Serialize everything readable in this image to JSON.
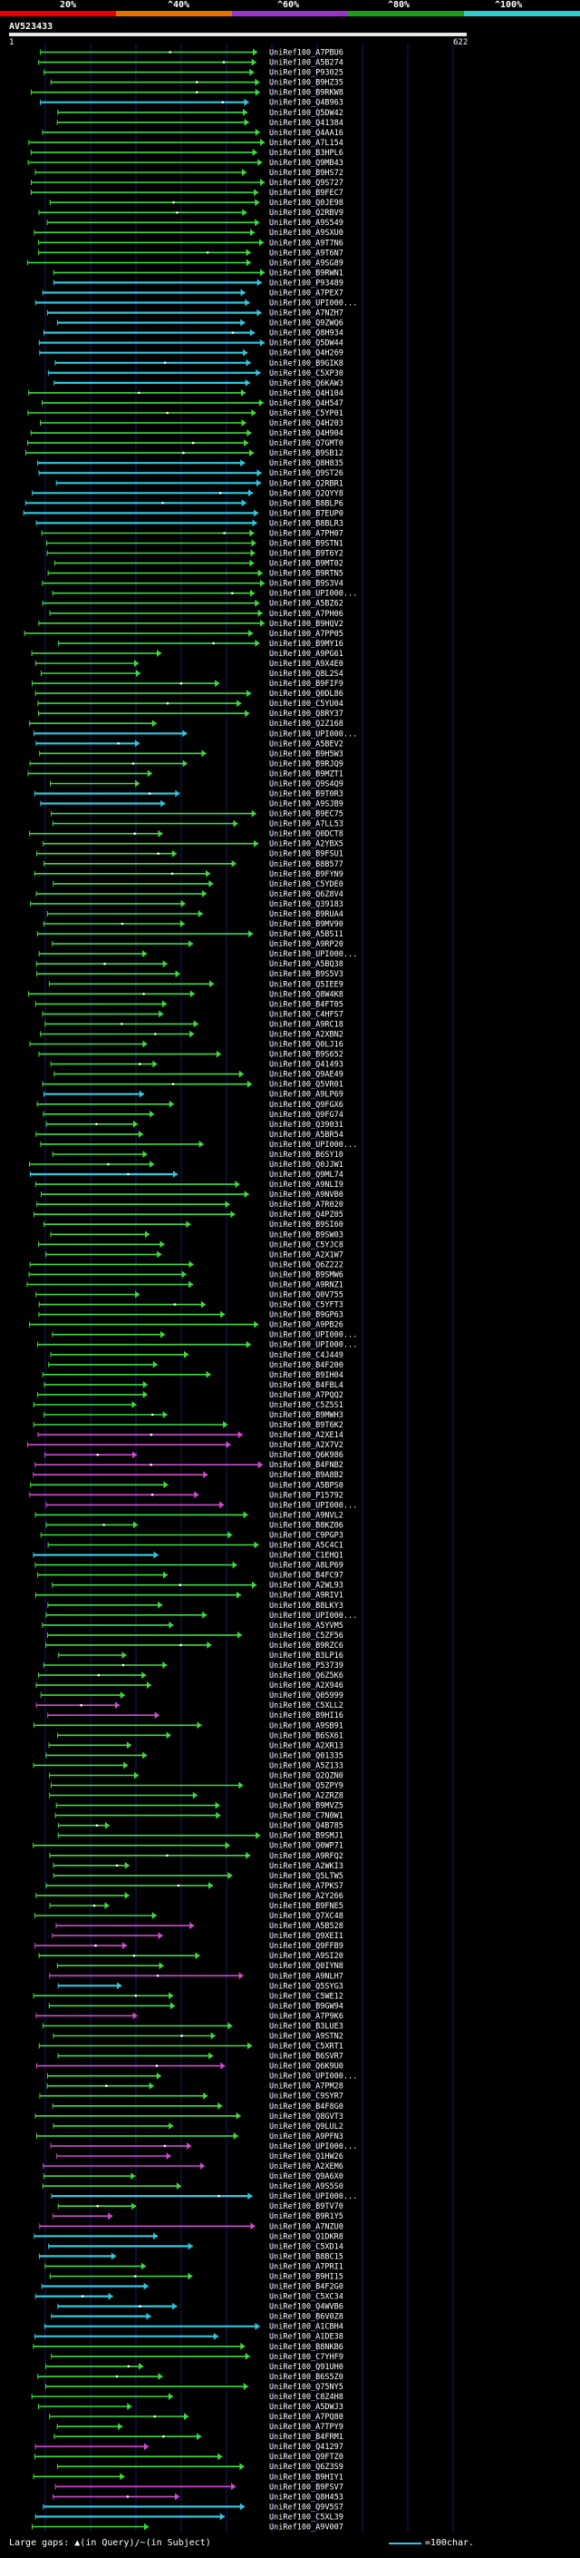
{
  "legend": {
    "labels": [
      "20%",
      "^40%",
      "^60%",
      "^80%",
      "^100%"
    ],
    "colors": [
      "#e60000",
      "#e67300",
      "#9933cc",
      "#1a9e1a",
      "#33cccc"
    ]
  },
  "query": {
    "title": "AV523433",
    "start": "1",
    "end": "622"
  },
  "colors": {
    "green": "#3ddc3d",
    "magenta": "#d14ad1",
    "cyan": "#2fc7dd",
    "grid": "#1a1a66"
  },
  "footer": {
    "large_gaps_label": "Large gaps:",
    "query_gap_label": "(in Query)",
    "subject_gap_label": "(in Subject)",
    "scale_label": "=100char."
  },
  "hits": [
    {
      "label": "UniRef100_A7PBU6",
      "c": "g"
    },
    {
      "label": "UniRef100_A5B274",
      "c": "g"
    },
    {
      "label": "UniRef100_P93025",
      "c": "g"
    },
    {
      "label": "UniRef100_B9HZ35",
      "c": "g"
    },
    {
      "label": "UniRef100_B9RKW8",
      "c": "g"
    },
    {
      "label": "UniRef100_Q4B963",
      "c": "c"
    },
    {
      "label": "UniRef100_Q5DW42",
      "c": "g"
    },
    {
      "label": "UniRef100_Q41384",
      "c": "g"
    },
    {
      "label": "UniRef100_Q4AA16",
      "c": "g"
    },
    {
      "label": "UniRef100_A7L154",
      "c": "g"
    },
    {
      "label": "UniRef100_B3HPL6",
      "c": "g"
    },
    {
      "label": "UniRef100_Q9MB43",
      "c": "g"
    },
    {
      "label": "UniRef100_B9HS72",
      "c": "g"
    },
    {
      "label": "UniRef100_Q9S727",
      "c": "g"
    },
    {
      "label": "UniRef100_B9FEC7",
      "c": "g"
    },
    {
      "label": "UniRef100_Q0JE98",
      "c": "g"
    },
    {
      "label": "UniRef100_Q2RBV9",
      "c": "g"
    },
    {
      "label": "UniRef100_A9S549",
      "c": "g"
    },
    {
      "label": "UniRef100_A9SXU0",
      "c": "g"
    },
    {
      "label": "UniRef100_A9T7N6",
      "c": "g"
    },
    {
      "label": "UniRef100_A9T6N7",
      "c": "g"
    },
    {
      "label": "UniRef100_A9SG89",
      "c": "g"
    },
    {
      "label": "UniRef100_B9RWN1",
      "c": "g"
    },
    {
      "label": "UniRef100_P93489",
      "c": "c"
    },
    {
      "label": "UniRef100_A7PEX7",
      "c": "c"
    },
    {
      "label": "UniRef100_UPI000...",
      "c": "c"
    },
    {
      "label": "UniRef100_A7NZH7",
      "c": "c"
    },
    {
      "label": "UniRef100_Q9ZWQ6",
      "c": "c"
    },
    {
      "label": "UniRef100_Q8H934",
      "c": "c"
    },
    {
      "label": "UniRef100_Q5DW44",
      "c": "c"
    },
    {
      "label": "UniRef100_Q4H269",
      "c": "c"
    },
    {
      "label": "UniRef100_B9GIK8",
      "c": "c"
    },
    {
      "label": "UniRef100_C5XP30",
      "c": "c"
    },
    {
      "label": "UniRef100_Q6KAW3",
      "c": "c"
    },
    {
      "label": "UniRef100_Q4H104",
      "c": "g"
    },
    {
      "label": "UniRef100_Q4H547",
      "c": "g"
    },
    {
      "label": "UniRef100_C5YP01",
      "c": "g"
    },
    {
      "label": "UniRef100_Q4H203",
      "c": "g"
    },
    {
      "label": "UniRef100_Q4H904",
      "c": "g"
    },
    {
      "label": "UniRef100_Q7GMT0",
      "c": "g"
    },
    {
      "label": "UniRef100_B9SB12",
      "c": "g"
    },
    {
      "label": "UniRef100_Q8H835",
      "c": "c"
    },
    {
      "label": "UniRef100_Q9ST26",
      "c": "c"
    },
    {
      "label": "UniRef100_Q2RBR1",
      "c": "c"
    },
    {
      "label": "UniRef100_Q2QYY8",
      "c": "c"
    },
    {
      "label": "UniRef100_B8BLP6",
      "c": "c"
    },
    {
      "label": "UniRef100_B7EUP0",
      "c": "c"
    },
    {
      "label": "UniRef100_B8BLR3",
      "c": "c"
    },
    {
      "label": "UniRef100_A7PH07",
      "c": "g"
    },
    {
      "label": "UniRef100_B9STN1",
      "c": "g"
    },
    {
      "label": "UniRef100_B9T6Y2",
      "c": "g"
    },
    {
      "label": "UniRef100_B9MT02",
      "c": "g"
    },
    {
      "label": "UniRef100_B9RTN5",
      "c": "g"
    },
    {
      "label": "UniRef100_B9S3V4",
      "c": "g"
    },
    {
      "label": "UniRef100_UPI000...",
      "c": "g"
    },
    {
      "label": "UniRef100_A5BZ62",
      "c": "g"
    },
    {
      "label": "UniRef100_A7PH06",
      "c": "g"
    },
    {
      "label": "UniRef100_B9HQV2",
      "c": "g"
    },
    {
      "label": "UniRef100_A7PP05",
      "c": "g"
    },
    {
      "label": "UniRef100_B9MY16",
      "c": "g"
    },
    {
      "label": "UniRef100_A9PG61",
      "c": "g"
    },
    {
      "label": "UniRef100_A9X4E0",
      "c": "g"
    },
    {
      "label": "UniRef100_Q8L2S4",
      "c": "g"
    },
    {
      "label": "UniRef100_B9FIF9",
      "c": "g"
    },
    {
      "label": "UniRef100_Q0DL86",
      "c": "g"
    },
    {
      "label": "UniRef100_C5YU04",
      "c": "g"
    },
    {
      "label": "UniRef100_Q8RY37",
      "c": "g"
    },
    {
      "label": "UniRef100_Q2Z168",
      "c": "g"
    },
    {
      "label": "UniRef100_UPI000...",
      "c": "c"
    },
    {
      "label": "UniRef100_A5BEV2",
      "c": "c"
    },
    {
      "label": "UniRef100_B9H5W3",
      "c": "g"
    },
    {
      "label": "UniRef100_B9RJQ9",
      "c": "g"
    },
    {
      "label": "UniRef100_B9MZT1",
      "c": "g"
    },
    {
      "label": "UniRef100_Q9S4Q9",
      "c": "g"
    },
    {
      "label": "UniRef100_B9T0R3",
      "c": "c"
    },
    {
      "label": "UniRef100_A9SJB9",
      "c": "c"
    },
    {
      "label": "UniRef100_B9EC75",
      "c": "g"
    },
    {
      "label": "UniRef100_A7LL53",
      "c": "g"
    },
    {
      "label": "UniRef100_Q0DCT8",
      "c": "g"
    },
    {
      "label": "UniRef100_A2YBX5",
      "c": "g"
    },
    {
      "label": "UniRef100_B9FSU1",
      "c": "g"
    },
    {
      "label": "UniRef100_B8B577",
      "c": "g"
    },
    {
      "label": "UniRef100_B9FYN9",
      "c": "g"
    },
    {
      "label": "UniRef100_C5YDE0",
      "c": "g"
    },
    {
      "label": "UniRef100_Q6Z8V4",
      "c": "g"
    },
    {
      "label": "UniRef100_Q39183",
      "c": "g"
    },
    {
      "label": "UniRef100_B9RUA4",
      "c": "g"
    },
    {
      "label": "UniRef100_B9MV90",
      "c": "g"
    },
    {
      "label": "UniRef100_A5BS11",
      "c": "g"
    },
    {
      "label": "UniRef100_A9RP20",
      "c": "g"
    },
    {
      "label": "UniRef100_UPI000...",
      "c": "g"
    },
    {
      "label": "UniRef100_A5BQ38",
      "c": "g"
    },
    {
      "label": "UniRef100_B9S5V3",
      "c": "g"
    },
    {
      "label": "UniRef100_Q5IEE9",
      "c": "g"
    },
    {
      "label": "UniRef100_Q8W4K8",
      "c": "g"
    },
    {
      "label": "UniRef100_B4FT05",
      "c": "g"
    },
    {
      "label": "UniRef100_C4HFS7",
      "c": "g"
    },
    {
      "label": "UniRef100_A9RC18",
      "c": "g"
    },
    {
      "label": "UniRef100_A2XBN2",
      "c": "g"
    },
    {
      "label": "UniRef100_Q0LJ16",
      "c": "g"
    },
    {
      "label": "UniRef100_B9S652",
      "c": "g"
    },
    {
      "label": "UniRef100_Q41493",
      "c": "g"
    },
    {
      "label": "UniRef100_Q9AE49",
      "c": "g"
    },
    {
      "label": "UniRef100_Q5VR01",
      "c": "g"
    },
    {
      "label": "UniRef100_A9LP69",
      "c": "c"
    },
    {
      "label": "UniRef100_Q9FGX6",
      "c": "g"
    },
    {
      "label": "UniRef100_Q9FG74",
      "c": "g"
    },
    {
      "label": "UniRef100_Q39031",
      "c": "g"
    },
    {
      "label": "UniRef100_A5BR54",
      "c": "g"
    },
    {
      "label": "UniRef100_UPI000...",
      "c": "g"
    },
    {
      "label": "UniRef100_B6SY10",
      "c": "g"
    },
    {
      "label": "UniRef100_Q0JJW1",
      "c": "g"
    },
    {
      "label": "UniRef100_Q9ML74",
      "c": "c"
    },
    {
      "label": "UniRef100_A9NLI9",
      "c": "g"
    },
    {
      "label": "UniRef100_A9NVB0",
      "c": "g"
    },
    {
      "label": "UniRef100_A7R020",
      "c": "g"
    },
    {
      "label": "UniRef100_Q4PZ05",
      "c": "g"
    },
    {
      "label": "UniRef100_B9SI60",
      "c": "g"
    },
    {
      "label": "UniRef100_B9SW03",
      "c": "g"
    },
    {
      "label": "UniRef100_C5YJC8",
      "c": "g"
    },
    {
      "label": "UniRef100_A2X1W7",
      "c": "g"
    },
    {
      "label": "UniRef100_Q6Z222",
      "c": "g"
    },
    {
      "label": "UniRef100_B9SMW6",
      "c": "g"
    },
    {
      "label": "UniRef100_A9RNZ1",
      "c": "g"
    },
    {
      "label": "UniRef100_Q0V755",
      "c": "g"
    },
    {
      "label": "UniRef100_C5YFT3",
      "c": "g"
    },
    {
      "label": "UniRef100_B9GP63",
      "c": "g"
    },
    {
      "label": "UniRef100_A9PB26",
      "c": "g"
    },
    {
      "label": "UniRef100_UPI000...",
      "c": "g"
    },
    {
      "label": "UniRef100_UPI000...",
      "c": "g"
    },
    {
      "label": "UniRef100_C4J449",
      "c": "g"
    },
    {
      "label": "UniRef100_B4F200",
      "c": "g"
    },
    {
      "label": "UniRef100_B9IH04",
      "c": "g"
    },
    {
      "label": "UniRef100_B4FBL4",
      "c": "g"
    },
    {
      "label": "UniRef100_A7PQQ2",
      "c": "g"
    },
    {
      "label": "UniRef100_C5Z5S1",
      "c": "g"
    },
    {
      "label": "UniRef100_B9MWH3",
      "c": "g"
    },
    {
      "label": "UniRef100_B9T6K2",
      "c": "g"
    },
    {
      "label": "UniRef100_A2XE14",
      "c": "m"
    },
    {
      "label": "UniRef100_A2X7V2",
      "c": "m"
    },
    {
      "label": "UniRef100_Q6K986",
      "c": "m"
    },
    {
      "label": "UniRef100_B4FNB2",
      "c": "m"
    },
    {
      "label": "UniRef100_B9A8B2",
      "c": "m"
    },
    {
      "label": "UniRef100_A5BPS0",
      "c": "g"
    },
    {
      "label": "UniRef100_P15792",
      "c": "m"
    },
    {
      "label": "UniRef100_UPI000...",
      "c": "m"
    },
    {
      "label": "UniRef100_A9NVL2",
      "c": "g"
    },
    {
      "label": "UniRef100_B8KZ06",
      "c": "g"
    },
    {
      "label": "UniRef100_C9PGP3",
      "c": "g"
    },
    {
      "label": "UniRef100_A5C4C1",
      "c": "g"
    },
    {
      "label": "UniRef100_C1EHQ1",
      "c": "c"
    },
    {
      "label": "UniRef100_A8LP69",
      "c": "g"
    },
    {
      "label": "UniRef100_B4FC97",
      "c": "g"
    },
    {
      "label": "UniRef100_A2WL93",
      "c": "g"
    },
    {
      "label": "UniRef100_A9RIV1",
      "c": "g"
    },
    {
      "label": "UniRef100_B8LKY3",
      "c": "g"
    },
    {
      "label": "UniRef100_UPI000...",
      "c": "g"
    },
    {
      "label": "UniRef100_A5YVM5",
      "c": "g"
    },
    {
      "label": "UniRef100_C5ZF56",
      "c": "g"
    },
    {
      "label": "UniRef100_B9RZC6",
      "c": "g"
    },
    {
      "label": "UniRef100_B3LP16",
      "c": "g"
    },
    {
      "label": "UniRef100_P53739",
      "c": "g"
    },
    {
      "label": "UniRef100_Q6Z5K6",
      "c": "g"
    },
    {
      "label": "UniRef100_A2X946",
      "c": "g"
    },
    {
      "label": "UniRef100_Q05999",
      "c": "g"
    },
    {
      "label": "UniRef100_C5XLL2",
      "c": "m"
    },
    {
      "label": "UniRef100_B9HI16",
      "c": "m"
    },
    {
      "label": "UniRef100_A9SB91",
      "c": "g"
    },
    {
      "label": "UniRef100_B6SX61",
      "c": "g"
    },
    {
      "label": "UniRef100_A2XR13",
      "c": "g"
    },
    {
      "label": "UniRef100_Q01335",
      "c": "g"
    },
    {
      "label": "UniRef100_A5Z133",
      "c": "g"
    },
    {
      "label": "UniRef100_Q2QZN0",
      "c": "g"
    },
    {
      "label": "UniRef100_Q5ZPY9",
      "c": "g"
    },
    {
      "label": "UniRef100_A2ZRZ8",
      "c": "g"
    },
    {
      "label": "UniRef100_B9MVZ5",
      "c": "g"
    },
    {
      "label": "UniRef100_C7N0W1",
      "c": "g"
    },
    {
      "label": "UniRef100_Q4B785",
      "c": "g"
    },
    {
      "label": "UniRef100_B9SMJ1",
      "c": "g"
    },
    {
      "label": "UniRef100_Q0WP71",
      "c": "g"
    },
    {
      "label": "UniRef100_A9RFQ2",
      "c": "g"
    },
    {
      "label": "UniRef100_A2WKI3",
      "c": "g"
    },
    {
      "label": "UniRef100_Q5LTW5",
      "c": "g"
    },
    {
      "label": "UniRef100_A7PKS7",
      "c": "g"
    },
    {
      "label": "UniRef100_A2Y266",
      "c": "g"
    },
    {
      "label": "UniRef100_B9FNE5",
      "c": "g"
    },
    {
      "label": "UniRef100_Q7XC48",
      "c": "g"
    },
    {
      "label": "UniRef100_A5B528",
      "c": "m"
    },
    {
      "label": "UniRef100_Q9XEI1",
      "c": "m"
    },
    {
      "label": "UniRef100_Q9FFB9",
      "c": "m"
    },
    {
      "label": "UniRef100_A9SI20",
      "c": "g"
    },
    {
      "label": "UniRef100_Q0IYN8",
      "c": "g"
    },
    {
      "label": "UniRef100_A9NLH7",
      "c": "m"
    },
    {
      "label": "UniRef100_Q5SYG3",
      "c": "c"
    },
    {
      "label": "UniRef100_C5WE12",
      "c": "g"
    },
    {
      "label": "UniRef100_B9GW94",
      "c": "g"
    },
    {
      "label": "UniRef100_A7P9K6",
      "c": "m"
    },
    {
      "label": "UniRef100_B3LUE3",
      "c": "g"
    },
    {
      "label": "UniRef100_A9STN2",
      "c": "g"
    },
    {
      "label": "UniRef100_C5XRT1",
      "c": "g"
    },
    {
      "label": "UniRef100_B6SVR7",
      "c": "g"
    },
    {
      "label": "UniRef100_Q6K9U0",
      "c": "m"
    },
    {
      "label": "UniRef100_UPI000...",
      "c": "g"
    },
    {
      "label": "UniRef100_A7PM28",
      "c": "g"
    },
    {
      "label": "UniRef100_C9SYR7",
      "c": "g"
    },
    {
      "label": "UniRef100_B4F8G0",
      "c": "g"
    },
    {
      "label": "UniRef100_Q8GVT3",
      "c": "g"
    },
    {
      "label": "UniRef100_Q9LUL2",
      "c": "g"
    },
    {
      "label": "UniRef100_A9PFN3",
      "c": "g"
    },
    {
      "label": "UniRef100_UPI000...",
      "c": "m"
    },
    {
      "label": "UniRef100_Q1HW26",
      "c": "m"
    },
    {
      "label": "UniRef100_A2XEM6",
      "c": "m"
    },
    {
      "label": "UniRef100_Q9A6X0",
      "c": "g"
    },
    {
      "label": "UniRef100_A9S5S0",
      "c": "g"
    },
    {
      "label": "UniRef100_UPI000...",
      "c": "c"
    },
    {
      "label": "UniRef100_B9TV70",
      "c": "g"
    },
    {
      "label": "UniRef100_B9R1Y5",
      "c": "m"
    },
    {
      "label": "UniRef100_A7NZU0",
      "c": "m"
    },
    {
      "label": "UniRef100_Q1DKR8",
      "c": "c"
    },
    {
      "label": "UniRef100_C5XD14",
      "c": "c"
    },
    {
      "label": "UniRef100_B8BC15",
      "c": "c"
    },
    {
      "label": "UniRef100_A7PRI1",
      "c": "g"
    },
    {
      "label": "UniRef100_B9HI15",
      "c": "g"
    },
    {
      "label": "UniRef100_B4F2G0",
      "c": "c"
    },
    {
      "label": "UniRef100_C5XC34",
      "c": "c"
    },
    {
      "label": "UniRef100_Q4WVB6",
      "c": "c"
    },
    {
      "label": "UniRef100_B6V0Z8",
      "c": "c"
    },
    {
      "label": "UniRef100_A1CBH4",
      "c": "c"
    },
    {
      "label": "UniRef100_A1DE38",
      "c": "c"
    },
    {
      "label": "UniRef100_B8NKB6",
      "c": "g"
    },
    {
      "label": "UniRef100_C7YHF9",
      "c": "g"
    },
    {
      "label": "UniRef100_Q91UH0",
      "c": "g"
    },
    {
      "label": "UniRef100_B6S5Z0",
      "c": "g"
    },
    {
      "label": "UniRef100_Q75NY5",
      "c": "g"
    },
    {
      "label": "UniRef100_C8Z4H8",
      "c": "g"
    },
    {
      "label": "UniRef100_A5DWJ3",
      "c": "g"
    },
    {
      "label": "UniRef100_A7PQ80",
      "c": "g"
    },
    {
      "label": "UniRef100_A7TPY9",
      "c": "g"
    },
    {
      "label": "UniRef100_B4FRM1",
      "c": "g"
    },
    {
      "label": "UniRef100_Q41297",
      "c": "m"
    },
    {
      "label": "UniRef100_Q9FTZ0",
      "c": "g"
    },
    {
      "label": "UniRef100_Q6Z3S9",
      "c": "g"
    },
    {
      "label": "UniRef100_B9HIY1",
      "c": "g"
    },
    {
      "label": "UniRef100_B9FSV7",
      "c": "m"
    },
    {
      "label": "UniRef100_Q8H453",
      "c": "m"
    },
    {
      "label": "UniRef100_Q9V5S7",
      "c": "c"
    },
    {
      "label": "UniRef100_C5XL39",
      "c": "c"
    },
    {
      "label": "UniRef100_A9V007",
      "c": "g"
    }
  ]
}
